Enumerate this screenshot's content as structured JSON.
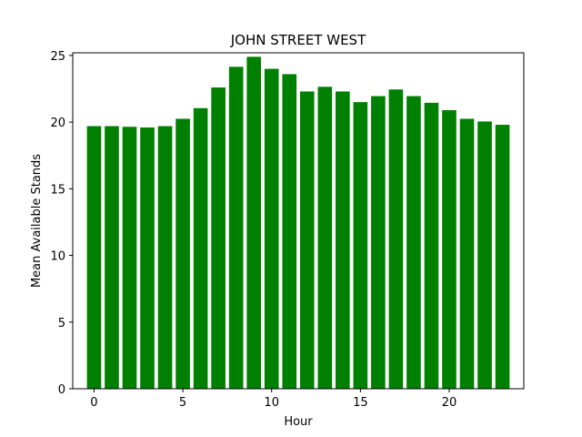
{
  "chart_data": {
    "type": "bar",
    "title": "JOHN STREET WEST",
    "xlabel": "Hour",
    "ylabel": "Mean Available Stands",
    "categories": [
      0,
      1,
      2,
      3,
      4,
      5,
      6,
      7,
      8,
      9,
      10,
      11,
      12,
      13,
      14,
      15,
      16,
      17,
      18,
      19,
      20,
      21,
      22,
      23
    ],
    "values": [
      19.7,
      19.7,
      19.65,
      19.6,
      19.7,
      20.25,
      21.05,
      22.6,
      24.15,
      24.9,
      24.0,
      23.6,
      22.3,
      22.65,
      22.3,
      21.5,
      21.95,
      22.45,
      21.95,
      21.45,
      20.9,
      20.25,
      20.05,
      19.8
    ],
    "xlim": [
      -1.2,
      24.2
    ],
    "ylim": [
      0,
      25.2
    ],
    "xticks": [
      0,
      5,
      10,
      15,
      20
    ],
    "yticks": [
      0,
      5,
      10,
      15,
      20,
      25
    ],
    "bar_color": "#008000",
    "grid": false
  }
}
